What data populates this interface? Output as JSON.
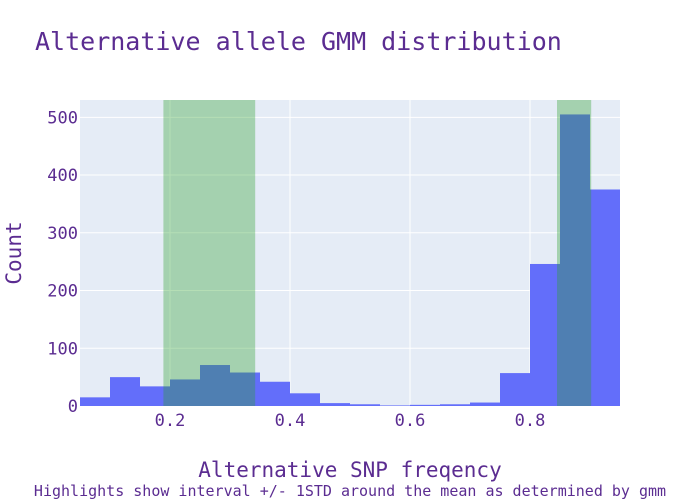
{
  "chart_data": {
    "type": "bar",
    "subtype": "histogram",
    "title": "Alternative allele GMM distribution",
    "xlabel": "Alternative SNP freqency",
    "ylabel": "Count",
    "caption": "Highlights show interval +/- 1STD around the mean as determined by gmm",
    "xlim": [
      0.05,
      0.95
    ],
    "ylim": [
      0,
      530
    ],
    "xticks": [
      0.2,
      0.4,
      0.6,
      0.8
    ],
    "xtick_labels": [
      "0.2",
      "0.4",
      "0.6",
      "0.8"
    ],
    "yticks": [
      0,
      100,
      200,
      300,
      400,
      500
    ],
    "ytick_labels": [
      "0",
      "100",
      "200",
      "300",
      "400",
      "500"
    ],
    "bin_width": 0.05,
    "bins": [
      {
        "x0": 0.05,
        "x1": 0.1,
        "count": 15
      },
      {
        "x0": 0.1,
        "x1": 0.15,
        "count": 50
      },
      {
        "x0": 0.15,
        "x1": 0.2,
        "count": 34
      },
      {
        "x0": 0.2,
        "x1": 0.25,
        "count": 46
      },
      {
        "x0": 0.25,
        "x1": 0.3,
        "count": 71
      },
      {
        "x0": 0.3,
        "x1": 0.35,
        "count": 58
      },
      {
        "x0": 0.35,
        "x1": 0.4,
        "count": 42
      },
      {
        "x0": 0.4,
        "x1": 0.45,
        "count": 22
      },
      {
        "x0": 0.45,
        "x1": 0.5,
        "count": 5
      },
      {
        "x0": 0.5,
        "x1": 0.55,
        "count": 3
      },
      {
        "x0": 0.55,
        "x1": 0.6,
        "count": 1
      },
      {
        "x0": 0.6,
        "x1": 0.65,
        "count": 2
      },
      {
        "x0": 0.65,
        "x1": 0.7,
        "count": 3
      },
      {
        "x0": 0.7,
        "x1": 0.75,
        "count": 6
      },
      {
        "x0": 0.75,
        "x1": 0.8,
        "count": 57
      },
      {
        "x0": 0.8,
        "x1": 0.85,
        "count": 246
      },
      {
        "x0": 0.85,
        "x1": 0.9,
        "count": 505
      },
      {
        "x0": 0.9,
        "x1": 0.95,
        "count": 375
      }
    ],
    "highlights": [
      {
        "x0": 0.189,
        "x1": 0.342
      },
      {
        "x0": 0.845,
        "x1": 0.902
      }
    ],
    "colors": {
      "bar": "#636efa",
      "highlight": "#2ca02c",
      "plot_bg": "#e5ecf6",
      "grid": "#ffffff",
      "text": "#5b2c91"
    },
    "grid": true,
    "legend": false
  }
}
